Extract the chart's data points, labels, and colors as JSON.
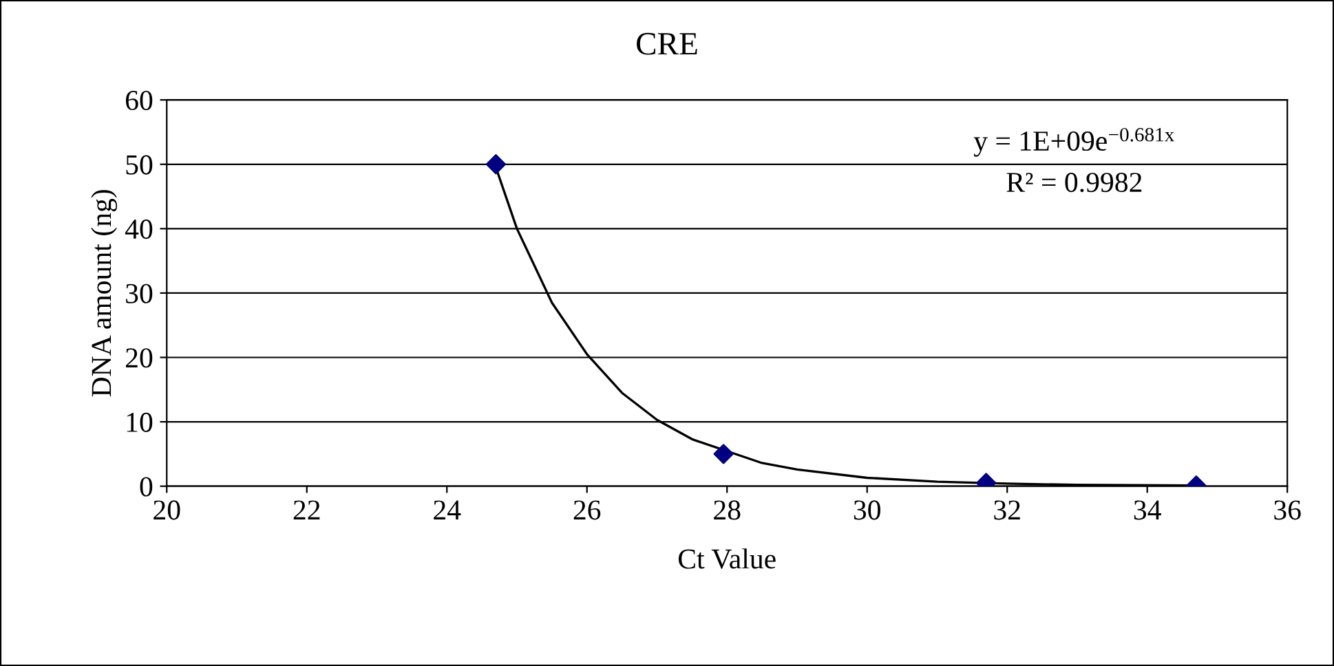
{
  "chart_data": {
    "type": "scatter",
    "title": "CRE",
    "xlabel": "Ct Value",
    "ylabel": "DNA amount (ng)",
    "x": [
      24.7,
      27.95,
      31.7,
      34.7
    ],
    "series": [
      {
        "color": "#000080",
        "marker": "diamond",
        "values": [
          50,
          5,
          0.5,
          0.1
        ]
      },
      {
        "type": "line",
        "color": "#000000",
        "marker": "none",
        "x": [
          24.7,
          25,
          25.5,
          26,
          26.5,
          27,
          27.5,
          28.5,
          29,
          30,
          31,
          32,
          33,
          34.7
        ],
        "values": [
          49.5,
          40,
          28.5,
          20.5,
          14.5,
          10.3,
          7.3,
          3.6,
          2.6,
          1.3,
          0.7,
          0.4,
          0.2,
          0.1
        ]
      }
    ],
    "annotations": [
      "y = 1E+09e$^{−0.681x}$",
      "R² = 0.9982"
    ],
    "xlim": [
      20,
      36
    ],
    "xticks": [
      20,
      22,
      24,
      26,
      28,
      30,
      32,
      34,
      36
    ],
    "ylim": [
      0,
      60
    ],
    "yticks": [
      0,
      10,
      20,
      30,
      40,
      50,
      60
    ],
    "grid": "y",
    "legend": false
  }
}
